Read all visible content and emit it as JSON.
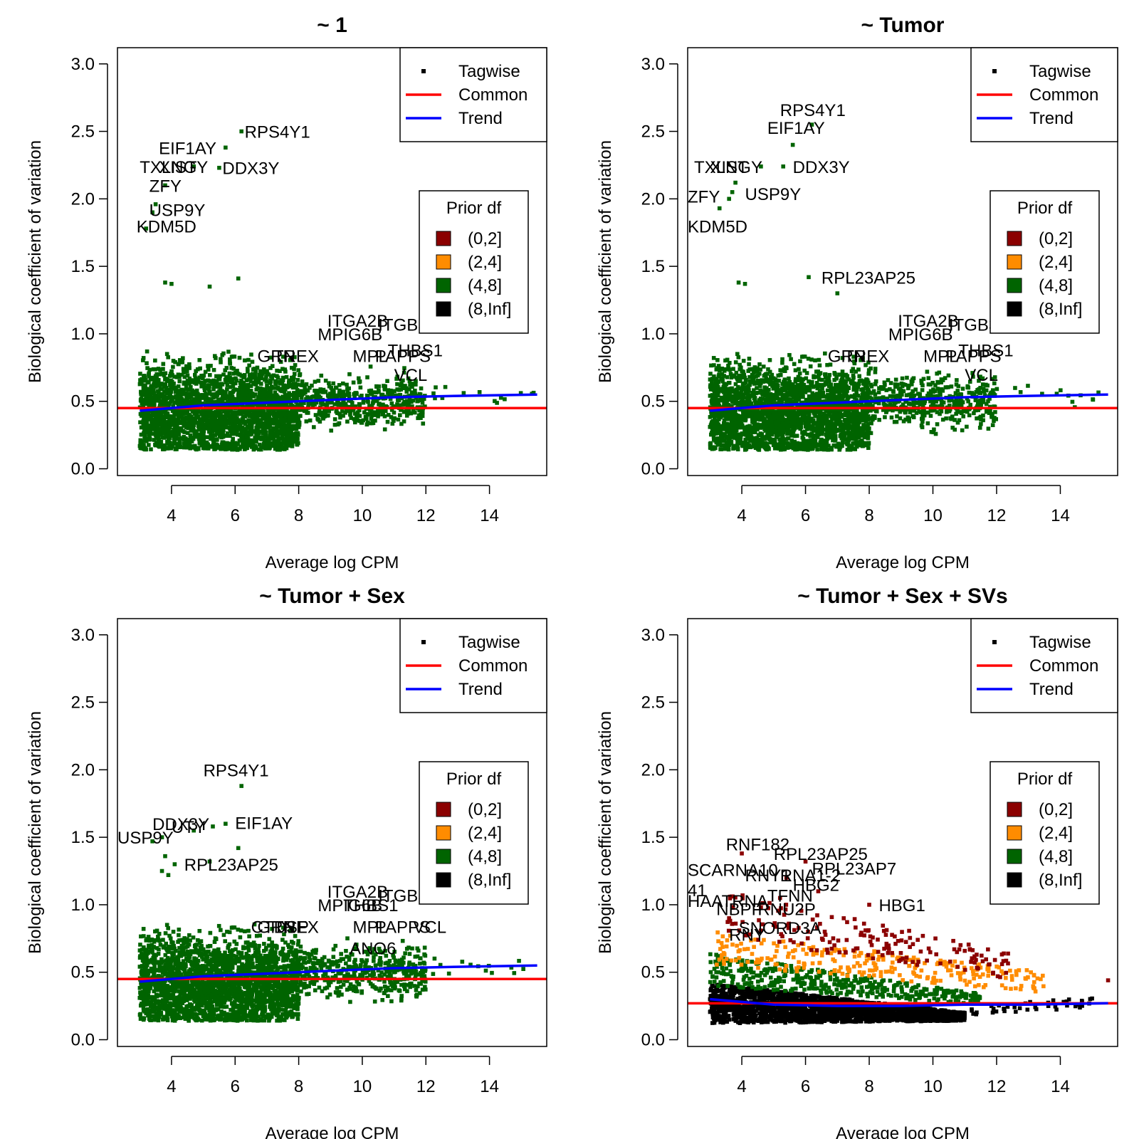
{
  "chart_data": [
    {
      "type": "scatter",
      "title": "~ 1",
      "xlabel": "Average log CPM",
      "ylabel": "Biological coefficient of variation",
      "xlim": [
        2.3,
        15.8
      ],
      "ylim": [
        -0.05,
        3.12
      ],
      "xticks": [
        4,
        6,
        8,
        10,
        12,
        14
      ],
      "yticks": [
        0.0,
        0.5,
        1.0,
        1.5,
        2.0,
        2.5,
        3.0
      ],
      "xtick_labels": [
        "4",
        "6",
        "8",
        "10",
        "12",
        "14"
      ],
      "ytick_labels": [
        "0.0",
        "0.5",
        "1.0",
        "1.5",
        "2.0",
        "2.5",
        "3.0"
      ],
      "common": 0.45,
      "trend": [
        [
          3.0,
          0.43
        ],
        [
          5.0,
          0.47
        ],
        [
          7.0,
          0.49
        ],
        [
          9.0,
          0.51
        ],
        [
          11.0,
          0.53
        ],
        [
          13.0,
          0.54
        ],
        [
          15.5,
          0.55
        ]
      ],
      "point_color": "#006400",
      "cloud": [
        {
          "x": [
            3.0,
            8.0
          ],
          "center": 0.42,
          "spread": 0.5,
          "floor": 0.14,
          "n": 2400
        },
        {
          "x": [
            8.0,
            12.0
          ],
          "center": 0.5,
          "spread": 0.28,
          "floor": 0.2,
          "n": 450
        },
        {
          "x": [
            12.0,
            15.5
          ],
          "center": 0.55,
          "spread": 0.1,
          "floor": 0.4,
          "n": 14
        }
      ],
      "outliers": [
        [
          6.2,
          2.5
        ],
        [
          5.7,
          2.38
        ],
        [
          4.7,
          2.24
        ],
        [
          5.5,
          2.23
        ],
        [
          3.8,
          2.1
        ],
        [
          3.5,
          1.96
        ],
        [
          3.4,
          1.9
        ],
        [
          3.2,
          1.78
        ],
        [
          3.8,
          1.38
        ],
        [
          4.0,
          1.37
        ],
        [
          6.1,
          1.41
        ],
        [
          5.2,
          1.35
        ]
      ],
      "labels": [
        {
          "text": "RPS4Y1",
          "x": 6.3,
          "y": 2.5
        },
        {
          "text": "EIF1AY",
          "x": 3.6,
          "y": 2.38
        },
        {
          "text": "TXLNGY",
          "x": 3.0,
          "y": 2.24
        },
        {
          "text": "XIST",
          "x": 3.6,
          "y": 2.24
        },
        {
          "text": "DDX3Y",
          "x": 5.6,
          "y": 2.23
        },
        {
          "text": "ZFY",
          "x": 3.3,
          "y": 2.1
        },
        {
          "text": "USP9Y",
          "x": 3.3,
          "y": 1.92
        },
        {
          "text": "KDM5D",
          "x": 2.9,
          "y": 1.8
        },
        {
          "text": "ITGA2B",
          "x": 8.9,
          "y": 1.1
        },
        {
          "text": "ITGB3",
          "x": 10.5,
          "y": 1.07
        },
        {
          "text": "MPIG6B",
          "x": 8.6,
          "y": 1.0
        },
        {
          "text": "THBS1",
          "x": 10.8,
          "y": 0.88
        },
        {
          "text": "GRN",
          "x": 6.7,
          "y": 0.84
        },
        {
          "text": "TREX",
          "x": 7.2,
          "y": 0.84
        },
        {
          "text": "MPL",
          "x": 9.7,
          "y": 0.84
        },
        {
          "text": "PAPPS",
          "x": 10.4,
          "y": 0.84
        },
        {
          "text": "VCL",
          "x": 11.0,
          "y": 0.7
        }
      ],
      "legend_lines": [
        {
          "label": "Tagwise",
          "color": "#000000",
          "kind": "point"
        },
        {
          "label": "Common",
          "color": "#ff0000",
          "kind": "line"
        },
        {
          "label": "Trend",
          "color": "#0000ff",
          "kind": "line"
        }
      ],
      "legend_prior": {
        "title": "Prior df",
        "entries": [
          {
            "label": "(0,2]",
            "color": "#8b0000"
          },
          {
            "label": "(2,4]",
            "color": "#ff8c00"
          },
          {
            "label": "(4,8]",
            "color": "#006400"
          },
          {
            "label": "(8,Inf]",
            "color": "#000000"
          }
        ]
      }
    },
    {
      "type": "scatter",
      "title": "~ Tumor",
      "xlabel": "Average log CPM",
      "ylabel": "Biological coefficient of variation",
      "xlim": [
        2.3,
        15.8
      ],
      "ylim": [
        -0.05,
        3.12
      ],
      "xticks": [
        4,
        6,
        8,
        10,
        12,
        14
      ],
      "yticks": [
        0.0,
        0.5,
        1.0,
        1.5,
        2.0,
        2.5,
        3.0
      ],
      "xtick_labels": [
        "4",
        "6",
        "8",
        "10",
        "12",
        "14"
      ],
      "ytick_labels": [
        "0.0",
        "0.5",
        "1.0",
        "1.5",
        "2.0",
        "2.5",
        "3.0"
      ],
      "common": 0.45,
      "trend": [
        [
          3.0,
          0.43
        ],
        [
          5.0,
          0.47
        ],
        [
          7.0,
          0.49
        ],
        [
          9.0,
          0.51
        ],
        [
          11.0,
          0.53
        ],
        [
          13.0,
          0.54
        ],
        [
          15.5,
          0.55
        ]
      ],
      "point_color": "#006400",
      "cloud": [
        {
          "x": [
            3.0,
            8.0
          ],
          "center": 0.42,
          "spread": 0.5,
          "floor": 0.14,
          "n": 2400
        },
        {
          "x": [
            8.0,
            12.0
          ],
          "center": 0.5,
          "spread": 0.28,
          "floor": 0.2,
          "n": 450
        },
        {
          "x": [
            12.0,
            15.5
          ],
          "center": 0.55,
          "spread": 0.1,
          "floor": 0.4,
          "n": 14
        }
      ],
      "outliers": [
        [
          6.2,
          2.55
        ],
        [
          5.6,
          2.4
        ],
        [
          5.3,
          2.24
        ],
        [
          4.6,
          2.24
        ],
        [
          3.8,
          2.12
        ],
        [
          3.7,
          2.05
        ],
        [
          3.6,
          2.0
        ],
        [
          3.3,
          1.93
        ],
        [
          6.1,
          1.42
        ],
        [
          3.9,
          1.38
        ],
        [
          4.1,
          1.37
        ],
        [
          7.0,
          1.3
        ]
      ],
      "labels": [
        {
          "text": "RPS4Y1",
          "x": 5.2,
          "y": 2.66
        },
        {
          "text": "EIF1AY",
          "x": 4.8,
          "y": 2.53
        },
        {
          "text": "TXLNGY",
          "x": 2.5,
          "y": 2.24
        },
        {
          "text": "XIST",
          "x": 3.0,
          "y": 2.24
        },
        {
          "text": "DDX3Y",
          "x": 5.6,
          "y": 2.24
        },
        {
          "text": "ZFY",
          "x": 2.3,
          "y": 2.02
        },
        {
          "text": "USP9Y",
          "x": 4.1,
          "y": 2.04
        },
        {
          "text": "KDM5D",
          "x": 2.3,
          "y": 1.8
        },
        {
          "text": "RPL23AP25",
          "x": 6.5,
          "y": 1.42
        },
        {
          "text": "ITGA2B",
          "x": 8.9,
          "y": 1.1
        },
        {
          "text": "ITGB3",
          "x": 10.5,
          "y": 1.07
        },
        {
          "text": "MPIG6B",
          "x": 8.6,
          "y": 1.0
        },
        {
          "text": "THBS1",
          "x": 10.8,
          "y": 0.88
        },
        {
          "text": "GRN",
          "x": 6.7,
          "y": 0.84
        },
        {
          "text": "TREX",
          "x": 7.2,
          "y": 0.84
        },
        {
          "text": "MPL",
          "x": 9.7,
          "y": 0.84
        },
        {
          "text": "PAPPS",
          "x": 10.4,
          "y": 0.84
        },
        {
          "text": "VCL",
          "x": 11.0,
          "y": 0.7
        }
      ],
      "legend_lines": [
        {
          "label": "Tagwise",
          "color": "#000000",
          "kind": "point"
        },
        {
          "label": "Common",
          "color": "#ff0000",
          "kind": "line"
        },
        {
          "label": "Trend",
          "color": "#0000ff",
          "kind": "line"
        }
      ],
      "legend_prior": {
        "title": "Prior df",
        "entries": [
          {
            "label": "(0,2]",
            "color": "#8b0000"
          },
          {
            "label": "(2,4]",
            "color": "#ff8c00"
          },
          {
            "label": "(4,8]",
            "color": "#006400"
          },
          {
            "label": "(8,Inf]",
            "color": "#000000"
          }
        ]
      }
    },
    {
      "type": "scatter",
      "title": "~ Tumor + Sex",
      "xlabel": "Average log CPM",
      "ylabel": "Biological coefficient of variation",
      "xlim": [
        2.3,
        15.8
      ],
      "ylim": [
        -0.05,
        3.12
      ],
      "xticks": [
        4,
        6,
        8,
        10,
        12,
        14
      ],
      "yticks": [
        0.0,
        0.5,
        1.0,
        1.5,
        2.0,
        2.5,
        3.0
      ],
      "xtick_labels": [
        "4",
        "6",
        "8",
        "10",
        "12",
        "14"
      ],
      "ytick_labels": [
        "0.0",
        "0.5",
        "1.0",
        "1.5",
        "2.0",
        "2.5",
        "3.0"
      ],
      "common": 0.45,
      "trend": [
        [
          3.0,
          0.43
        ],
        [
          5.0,
          0.47
        ],
        [
          7.0,
          0.49
        ],
        [
          9.0,
          0.51
        ],
        [
          11.0,
          0.53
        ],
        [
          13.0,
          0.54
        ],
        [
          15.5,
          0.55
        ]
      ],
      "point_color": "#006400",
      "cloud": [
        {
          "x": [
            3.0,
            8.0
          ],
          "center": 0.42,
          "spread": 0.5,
          "floor": 0.14,
          "n": 2400
        },
        {
          "x": [
            8.0,
            12.0
          ],
          "center": 0.5,
          "spread": 0.28,
          "floor": 0.2,
          "n": 450
        },
        {
          "x": [
            12.0,
            15.5
          ],
          "center": 0.55,
          "spread": 0.1,
          "floor": 0.4,
          "n": 14
        }
      ],
      "outliers": [
        [
          6.2,
          1.88
        ],
        [
          5.7,
          1.6
        ],
        [
          5.3,
          1.58
        ],
        [
          4.7,
          1.55
        ],
        [
          3.7,
          1.5
        ],
        [
          3.4,
          1.47
        ],
        [
          6.1,
          1.42
        ],
        [
          3.8,
          1.36
        ],
        [
          4.1,
          1.3
        ],
        [
          5.2,
          1.32
        ],
        [
          3.7,
          1.25
        ],
        [
          3.9,
          1.22
        ]
      ],
      "labels": [
        {
          "text": "RPS4Y1",
          "x": 5.0,
          "y": 2.0
        },
        {
          "text": "EIF1AY",
          "x": 6.0,
          "y": 1.61
        },
        {
          "text": "DDX3Y",
          "x": 3.4,
          "y": 1.6
        },
        {
          "text": "UTY",
          "x": 4.0,
          "y": 1.58
        },
        {
          "text": "USP9Y",
          "x": 2.3,
          "y": 1.5
        },
        {
          "text": "RPL23AP25",
          "x": 4.4,
          "y": 1.3
        },
        {
          "text": "ITGA2B",
          "x": 8.9,
          "y": 1.1
        },
        {
          "text": "ITGB3",
          "x": 10.5,
          "y": 1.07
        },
        {
          "text": "MPIG6B",
          "x": 8.6,
          "y": 1.0
        },
        {
          "text": "THBS1",
          "x": 9.4,
          "y": 1.0
        },
        {
          "text": "CTDSP",
          "x": 6.5,
          "y": 0.84
        },
        {
          "text": "GRN",
          "x": 6.7,
          "y": 0.84
        },
        {
          "text": "TREX",
          "x": 7.2,
          "y": 0.84
        },
        {
          "text": "MPL",
          "x": 9.7,
          "y": 0.84
        },
        {
          "text": "PAPPS",
          "x": 10.4,
          "y": 0.84
        },
        {
          "text": "VCL",
          "x": 11.6,
          "y": 0.84
        },
        {
          "text": "ANO6",
          "x": 9.6,
          "y": 0.68
        }
      ],
      "legend_lines": [
        {
          "label": "Tagwise",
          "color": "#000000",
          "kind": "point"
        },
        {
          "label": "Common",
          "color": "#ff0000",
          "kind": "line"
        },
        {
          "label": "Trend",
          "color": "#0000ff",
          "kind": "line"
        }
      ],
      "legend_prior": {
        "title": "Prior df",
        "entries": [
          {
            "label": "(0,2]",
            "color": "#8b0000"
          },
          {
            "label": "(2,4]",
            "color": "#ff8c00"
          },
          {
            "label": "(4,8]",
            "color": "#006400"
          },
          {
            "label": "(8,Inf]",
            "color": "#000000"
          }
        ]
      }
    },
    {
      "type": "scatter",
      "title": "~ Tumor + Sex + SVs",
      "xlabel": "Average log CPM",
      "ylabel": "Biological coefficient of variation",
      "xlim": [
        2.3,
        15.8
      ],
      "ylim": [
        -0.05,
        3.12
      ],
      "xticks": [
        4,
        6,
        8,
        10,
        12,
        14
      ],
      "yticks": [
        0.0,
        0.5,
        1.0,
        1.5,
        2.0,
        2.5,
        3.0
      ],
      "xtick_labels": [
        "4",
        "6",
        "8",
        "10",
        "12",
        "14"
      ],
      "ytick_labels": [
        "0.0",
        "0.5",
        "1.0",
        "1.5",
        "2.0",
        "2.5",
        "3.0"
      ],
      "common": 0.27,
      "trend": [
        [
          3.0,
          0.3
        ],
        [
          5.0,
          0.26
        ],
        [
          7.0,
          0.25
        ],
        [
          9.0,
          0.25
        ],
        [
          11.0,
          0.26
        ],
        [
          13.0,
          0.26
        ],
        [
          15.5,
          0.27
        ]
      ],
      "point_color": "#000000",
      "bands": [
        {
          "color": "#000000",
          "x": [
            3.0,
            11.0
          ],
          "low": [
            0.12,
            0.14
          ],
          "high": [
            0.42,
            0.2
          ],
          "n": 2200
        },
        {
          "color": "#000000",
          "x": [
            11.0,
            15.0
          ],
          "low": [
            0.18,
            0.24
          ],
          "high": [
            0.24,
            0.32
          ],
          "n": 40
        },
        {
          "color": "#006400",
          "x": [
            3.0,
            11.5
          ],
          "low": [
            0.4,
            0.26
          ],
          "high": [
            0.64,
            0.34
          ],
          "n": 420
        },
        {
          "color": "#ff8c00",
          "x": [
            3.2,
            13.5
          ],
          "low": [
            0.55,
            0.35
          ],
          "high": [
            0.8,
            0.5
          ],
          "n": 260
        },
        {
          "color": "#8b0000",
          "x": [
            3.5,
            12.5
          ],
          "low": [
            0.75,
            0.45
          ],
          "high": [
            1.1,
            0.65
          ],
          "n": 170
        }
      ],
      "outliers": [
        [
          4.0,
          1.38
        ],
        [
          6.0,
          1.32
        ],
        [
          5.4,
          1.2
        ],
        [
          6.4,
          1.1
        ],
        [
          8.0,
          1.0
        ],
        [
          5.2,
          1.05
        ],
        [
          4.6,
          0.98
        ],
        [
          3.6,
          0.9
        ],
        [
          7.2,
          0.9
        ],
        [
          5.0,
          0.85
        ],
        [
          15.5,
          0.44
        ]
      ],
      "labels": [
        {
          "text": "RNF182",
          "x": 3.5,
          "y": 1.45
        },
        {
          "text": "RPL23AP25",
          "x": 5.0,
          "y": 1.38
        },
        {
          "text": "SCARNA10",
          "x": 2.3,
          "y": 1.26
        },
        {
          "text": "RNY1",
          "x": 4.1,
          "y": 1.22
        },
        {
          "text": "RNA1-2",
          "x": 5.2,
          "y": 1.22
        },
        {
          "text": "RPL23AP7",
          "x": 6.2,
          "y": 1.27
        },
        {
          "text": "HBG2",
          "x": 5.6,
          "y": 1.15
        },
        {
          "text": "41",
          "x": 2.3,
          "y": 1.11
        },
        {
          "text": "TFNN",
          "x": 4.8,
          "y": 1.07
        },
        {
          "text": "HAATRNA",
          "x": 2.3,
          "y": 1.03
        },
        {
          "text": "NBPF",
          "x": 3.2,
          "y": 0.97
        },
        {
          "text": "HBG1",
          "x": 8.3,
          "y": 1.0
        },
        {
          "text": "RNU2P",
          "x": 4.5,
          "y": 0.97
        },
        {
          "text": "SNORD3A",
          "x": 3.9,
          "y": 0.83
        },
        {
          "text": "RNY",
          "x": 3.6,
          "y": 0.78
        }
      ],
      "legend_lines": [
        {
          "label": "Tagwise",
          "color": "#000000",
          "kind": "point"
        },
        {
          "label": "Common",
          "color": "#ff0000",
          "kind": "line"
        },
        {
          "label": "Trend",
          "color": "#0000ff",
          "kind": "line"
        }
      ],
      "legend_prior": {
        "title": "Prior df",
        "entries": [
          {
            "label": "(0,2]",
            "color": "#8b0000"
          },
          {
            "label": "(2,4]",
            "color": "#ff8c00"
          },
          {
            "label": "(4,8]",
            "color": "#006400"
          },
          {
            "label": "(8,Inf]",
            "color": "#000000"
          }
        ]
      }
    }
  ]
}
